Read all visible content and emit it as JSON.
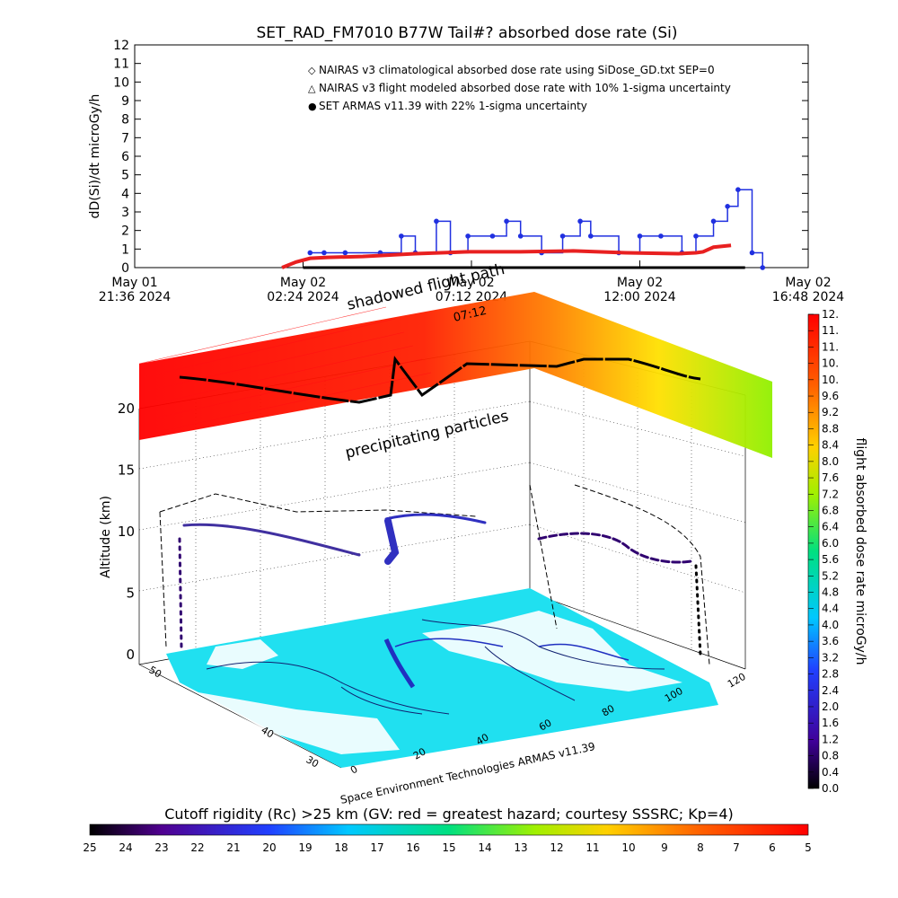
{
  "chart_data": [
    {
      "type": "line",
      "title": "SET_RAD_FM7010  B77W Tail#? absorbed dose rate (Si)",
      "ylabel": "dD(Si)/dt microGy/h",
      "ylim": [
        0,
        12
      ],
      "y_ticks": [
        "0",
        "1",
        "2",
        "3",
        "4",
        "5",
        "6",
        "7",
        "8",
        "9",
        "10",
        "11",
        "12"
      ],
      "x_ticks": [
        {
          "date": "May 01",
          "time": "21:36 2024"
        },
        {
          "date": "May 02",
          "time": "02:24 2024"
        },
        {
          "date": "May 02",
          "time": "07:12 2024"
        },
        {
          "date": "May 02",
          "time": "12:00 2024"
        },
        {
          "date": "May 02",
          "time": "16:48 2024"
        }
      ],
      "xlim_hours": [
        0,
        19.2
      ],
      "legend": [
        {
          "label": "NAIRAS v3 climatological absorbed dose rate using SiDose_GD.txt SEP=0",
          "marker": "◇",
          "color": "#d04010"
        },
        {
          "label": "NAIRAS v3 flight modeled absorbed dose rate with 10% 1-sigma uncertainty",
          "marker": "△",
          "color": "#000000"
        },
        {
          "label": "SET ARMAS v11.39 with 22% 1-sigma uncertainty",
          "marker": "●",
          "color": "#2030e0"
        }
      ],
      "legend_position": "top-right",
      "series": [
        {
          "name": "NAIRAS v3 climatological absorbed dose rate using SiDose_GD.txt SEP=0",
          "color": "#e82020",
          "x": [
            4.2,
            4.6,
            5.0,
            5.5,
            6.5,
            8.0,
            9.5,
            11.0,
            12.5,
            14.0,
            15.5,
            16.0,
            16.2,
            16.5,
            17.0
          ],
          "values": [
            0,
            0.3,
            0.5,
            0.55,
            0.6,
            0.75,
            0.85,
            0.85,
            0.9,
            0.8,
            0.75,
            0.8,
            0.85,
            1.1,
            1.2
          ]
        },
        {
          "name": "NAIRAS v3 flight modeled absorbed dose rate with 10% 1-sigma uncertainty",
          "color": "#000000",
          "x": [
            4.8,
            17.4
          ],
          "values": [
            0,
            0
          ]
        },
        {
          "name": "SET ARMAS v11.39 with 22% 1-sigma uncertainty",
          "color": "#2030e0",
          "x": [
            5.0,
            5.4,
            6.0,
            7.0,
            7.6,
            8.0,
            8.6,
            9.0,
            9.5,
            10.2,
            10.6,
            11.0,
            11.6,
            12.2,
            12.7,
            13.0,
            13.8,
            14.4,
            15.0,
            15.6,
            16.0,
            16.5,
            16.9,
            17.2,
            17.6,
            17.9
          ],
          "values": [
            0.8,
            0.8,
            0.8,
            0.8,
            1.7,
            0.8,
            2.5,
            0.8,
            1.7,
            1.7,
            2.5,
            1.7,
            0.8,
            1.7,
            2.5,
            1.7,
            0.8,
            1.7,
            1.7,
            0.8,
            1.7,
            2.5,
            3.3,
            4.2,
            0.8,
            0
          ]
        }
      ]
    },
    {
      "type": "scatter",
      "title": "",
      "zlabel": "Altitude (km)",
      "z_ticks": [
        "0",
        "5",
        "10",
        "15",
        "20"
      ],
      "lat_ticks": [
        "30",
        "40",
        "50"
      ],
      "lon_ticks": [
        "0",
        "20",
        "40",
        "60",
        "80",
        "100",
        "120"
      ],
      "colorbar_right": {
        "label": "flight absorbed dose rate microGy/h",
        "ticks": [
          "0.0",
          "0.4",
          "0.8",
          "1.2",
          "1.6",
          "2.0",
          "2.4",
          "2.8",
          "3.2",
          "3.6",
          "4.0",
          "4.4",
          "4.8",
          "5.2",
          "5.6",
          "6.0",
          "6.4",
          "6.8",
          "7.2",
          "7.6",
          "8.0",
          "8.4",
          "8.8",
          "9.2",
          "9.6",
          "10.",
          "10.",
          "11.",
          "11.",
          "12."
        ],
        "colors": [
          "#000000",
          "#40009a",
          "#2040ff",
          "#00c8ff",
          "#00e080",
          "#a0f000",
          "#ffd000",
          "#ff6000",
          "#ff0000"
        ]
      },
      "annotations": [
        "shadowed flight path",
        "precipitating particles",
        "Space Environment Technologies ARMAS v11.39"
      ],
      "annotation_overlap": "07:12",
      "colorbar_bottom": {
        "label": "Cutoff rigidity (Rc) >25 km (GV: red = greatest hazard; courtesy SSSRC; Kp=4)",
        "ticks": [
          "25",
          "24",
          "23",
          "22",
          "21",
          "20",
          "19",
          "18",
          "17",
          "16",
          "15",
          "14",
          "13",
          "12",
          "11",
          "10",
          "9",
          "8",
          "7",
          "6",
          "5"
        ],
        "colors": [
          "#000000",
          "#500090",
          "#2040ff",
          "#00c8ff",
          "#00e080",
          "#a0f000",
          "#ffd000",
          "#ff6000",
          "#ff0000"
        ]
      },
      "surface_color": "#20e0f0",
      "track_color": "#2030c0"
    }
  ]
}
